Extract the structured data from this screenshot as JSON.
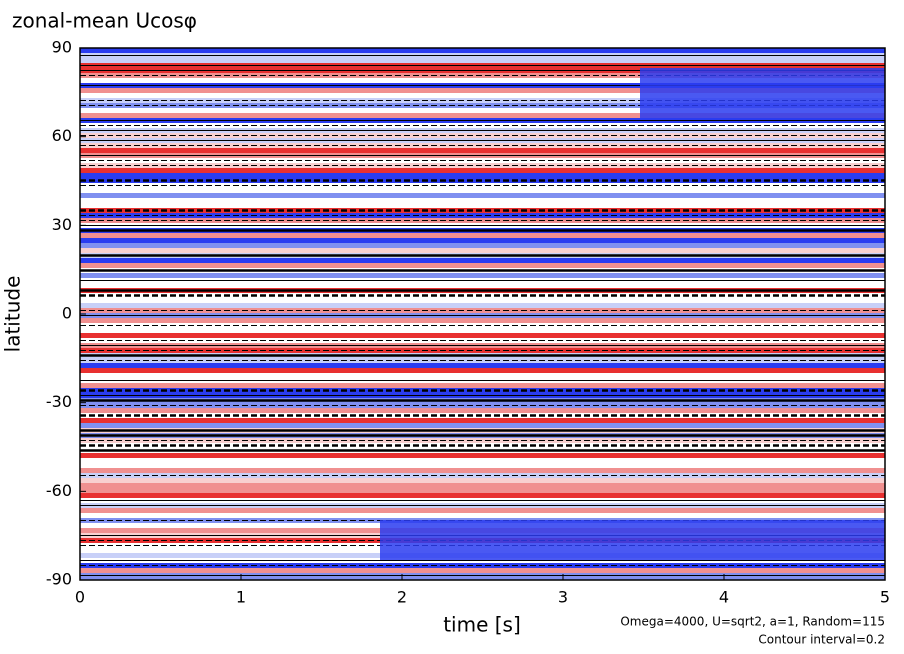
{
  "chart_data": {
    "type": "contour",
    "title": "zonal-mean Ucosφ",
    "xlabel": "time [s]",
    "ylabel": "latitude",
    "xlim": [
      0,
      5
    ],
    "xticks": [
      0,
      1,
      2,
      3,
      4,
      5
    ],
    "ylim": [
      -90,
      90
    ],
    "yticks": [
      -90,
      -60,
      -30,
      0,
      30,
      60,
      90
    ],
    "annotations": [
      "Omega=4000, U=sqrt2, a=1, Random=115",
      "Contour interval=0.2"
    ]
  }
}
